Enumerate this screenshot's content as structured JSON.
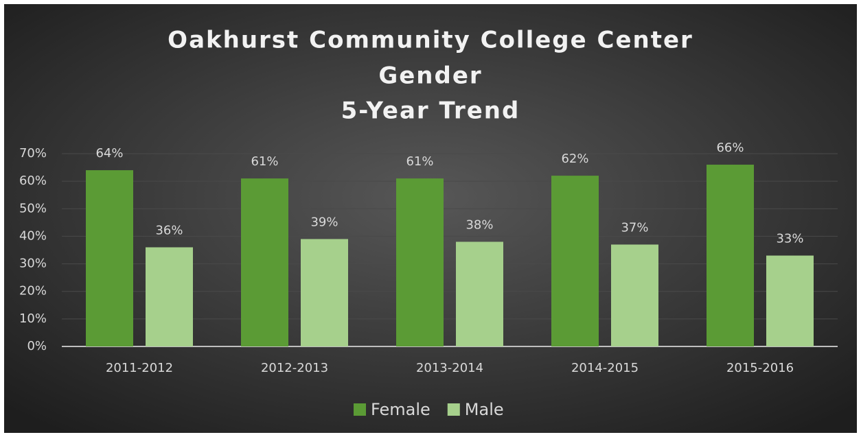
{
  "chart_data": {
    "type": "bar",
    "title": [
      "Oakhurst Community College Center",
      "Gender",
      "5-Year Trend"
    ],
    "categories": [
      "2011-2012",
      "2012-2013",
      "2013-2014",
      "2014-2015",
      "2015-2016"
    ],
    "series": [
      {
        "name": "Female",
        "color": "#5b9b35",
        "values": [
          64,
          61,
          61,
          62,
          66
        ],
        "value_labels": [
          "64%",
          "61%",
          "61%",
          "62%",
          "66%"
        ]
      },
      {
        "name": "Male",
        "color": "#a6d08c",
        "values": [
          36,
          39,
          38,
          37,
          33
        ],
        "value_labels": [
          "36%",
          "39%",
          "38%",
          "37%",
          "33%"
        ]
      }
    ],
    "ylim": [
      0,
      70
    ],
    "yticks": [
      {
        "value": 0,
        "label": "0%"
      },
      {
        "value": 10,
        "label": "10%"
      },
      {
        "value": 20,
        "label": "20%"
      },
      {
        "value": 30,
        "label": "30%"
      },
      {
        "value": 40,
        "label": "40%"
      },
      {
        "value": 50,
        "label": "50%"
      },
      {
        "value": 60,
        "label": "60%"
      },
      {
        "value": 70,
        "label": "70%"
      }
    ],
    "grid": true,
    "legend": "bottom"
  }
}
